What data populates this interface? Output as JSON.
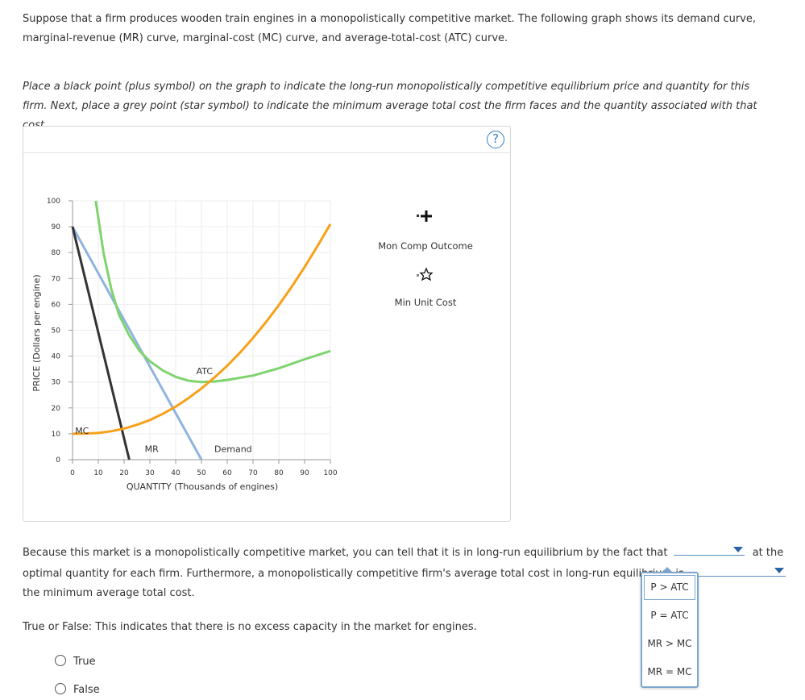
{
  "question": {
    "intro": "Suppose that a firm produces wooden train engines in a monopolistically competitive market. The following graph shows its demand curve, marginal-revenue (MR) curve, marginal-cost (MC) curve, and average-total-cost (ATC) curve.",
    "instructions": "Place a black point (plus symbol) on the graph to indicate the long-run monopolistically competitive equilibrium price and quantity for this firm. Next, place a grey point (star symbol) to indicate the minimum average total cost the firm faces and the quantity associated with that cost."
  },
  "graph": {
    "help_label": "?",
    "tools": [
      {
        "label": "Mon Comp Outcome",
        "symbol": "plus"
      },
      {
        "label": "Min Unit Cost",
        "symbol": "star"
      }
    ]
  },
  "chart_data": {
    "type": "line",
    "xlabel": "QUANTITY (Thousands of engines)",
    "ylabel": "PRICE (Dollars per engine)",
    "xlim": [
      0,
      100
    ],
    "ylim": [
      0,
      100
    ],
    "xticks": [
      0,
      10,
      20,
      30,
      40,
      50,
      60,
      70,
      80,
      90,
      100
    ],
    "yticks": [
      0,
      10,
      20,
      30,
      40,
      50,
      60,
      70,
      80,
      90,
      100
    ],
    "grid": true,
    "series": [
      {
        "name": "Demand",
        "color": "#8fb4df",
        "x": [
          0,
          50
        ],
        "y": [
          90,
          0
        ]
      },
      {
        "name": "MR",
        "color": "#333333",
        "x": [
          0,
          22
        ],
        "y": [
          90,
          0
        ]
      },
      {
        "name": "ATC",
        "color": "#7fd46e",
        "x": [
          9,
          12,
          15,
          18,
          22,
          26,
          30,
          35,
          40,
          45,
          50,
          55,
          60,
          70,
          80,
          90,
          100
        ],
        "y": [
          100,
          80,
          66,
          56,
          48,
          42,
          38,
          34.5,
          32,
          30.5,
          30,
          30.2,
          30.8,
          32.5,
          35.3,
          38.8,
          42
        ]
      },
      {
        "name": "MC",
        "color": "#f7a11a",
        "x": [
          0,
          5,
          10,
          15,
          20,
          25,
          30,
          35,
          40,
          45,
          50,
          55,
          60,
          65,
          70,
          75,
          80,
          85,
          90,
          95,
          100
        ],
        "y": [
          10,
          10.1,
          10.3,
          11,
          12,
          13.5,
          15.3,
          17.7,
          20.5,
          23.8,
          27.5,
          31.7,
          36.3,
          41.4,
          47,
          53.1,
          59.7,
          66.8,
          74.4,
          82.5,
          91
        ]
      }
    ],
    "curve_labels": [
      {
        "text": "MC",
        "x": 1,
        "y": 10
      },
      {
        "text": "MR",
        "x": 28,
        "y": 3
      },
      {
        "text": "Demand",
        "x": 55,
        "y": 3
      },
      {
        "text": "ATC",
        "x": 48,
        "y": 33
      }
    ]
  },
  "followup": {
    "part1": "Because this market is a monopolistically competitive market, you can tell that it is in long-run equilibrium by the fact that",
    "part2": "at the optimal quantity for each firm. Furthermore, a monopolistically competitive firm's average total cost in long-run equilibrium is",
    "part3": "the minimum average total cost.",
    "dropdown_options": [
      "P > ATC",
      "P = ATC",
      "MR > MC",
      "MR = MC"
    ]
  },
  "truefalse": {
    "prompt": "True or False: This indicates that there is no excess capacity in the market for engines.",
    "options": [
      "True",
      "False"
    ]
  }
}
